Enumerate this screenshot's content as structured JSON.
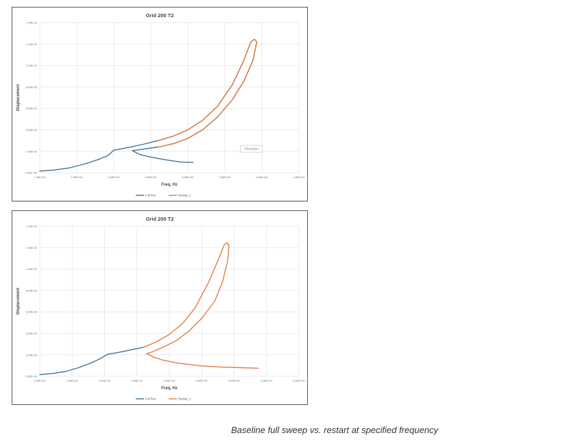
{
  "caption": "Baseline full sweep vs. restart at specified frequency",
  "chart_data": [
    {
      "type": "line",
      "title": "Grid 200 T2",
      "xlabel": "Freq, Hz",
      "ylabel": "Displacement",
      "xlim": [
        10,
        45
      ],
      "ylim": [
        0,
        0.014
      ],
      "x_ticks": [
        10,
        15,
        20,
        25,
        30,
        35,
        40,
        45
      ],
      "x_tick_labels": [
        "1.00E+01",
        "1.50E+01",
        "2.00E+01",
        "2.50E+01",
        "3.00E+01",
        "3.50E+01",
        "4.00E+01",
        "4.50E+01"
      ],
      "y_ticks": [
        0,
        0.002,
        0.004,
        0.006,
        0.008,
        0.01,
        0.012,
        0.014
      ],
      "y_tick_labels": [
        "0.00E+00",
        "2.00E-03",
        "4.00E-03",
        "6.00E-03",
        "8.00E-03",
        "1.00E-02",
        "1.20E-02",
        "1.40E-02"
      ],
      "grid": true,
      "legend": "bottom",
      "annotation": "Plot Area",
      "series": [
        {
          "name": "Full Run",
          "color": "#41729a",
          "points": [
            [
              10,
              0.00015
            ],
            [
              12,
              0.00025
            ],
            [
              14,
              0.00045
            ],
            [
              16,
              0.0008
            ],
            [
              18,
              0.00125
            ],
            [
              19.2,
              0.0016
            ],
            [
              20,
              0.0021
            ],
            [
              22,
              0.00235
            ],
            [
              24,
              0.00265
            ],
            [
              26,
              0.003
            ],
            [
              28,
              0.0034
            ],
            [
              30,
              0.004
            ],
            [
              32,
              0.0049
            ],
            [
              34,
              0.0062
            ],
            [
              36,
              0.0082
            ],
            [
              37.5,
              0.0104
            ],
            [
              38.5,
              0.0122
            ],
            [
              39,
              0.01245
            ],
            [
              39.3,
              0.0122
            ],
            [
              38.8,
              0.0105
            ],
            [
              37.6,
              0.0086
            ],
            [
              36,
              0.0068
            ],
            [
              34,
              0.0052
            ],
            [
              32,
              0.004
            ],
            [
              30,
              0.0032
            ],
            [
              28,
              0.0027
            ],
            [
              26,
              0.0024
            ],
            [
              24,
              0.0022
            ],
            [
              22.5,
              0.00205
            ],
            [
              23.5,
              0.0017
            ],
            [
              25,
              0.00145
            ],
            [
              27,
              0.0012
            ],
            [
              29,
              0.001
            ],
            [
              30.7,
              0.00095
            ]
          ]
        },
        {
          "name": "Restart_1",
          "color": "#e07b44",
          "points": [
            [
              26,
              0.003
            ],
            [
              28,
              0.0034
            ],
            [
              30,
              0.004
            ],
            [
              32,
              0.0049
            ],
            [
              34,
              0.0062
            ],
            [
              36,
              0.0082
            ],
            [
              37.5,
              0.0104
            ],
            [
              38.5,
              0.0122
            ],
            [
              39,
              0.01245
            ],
            [
              39.3,
              0.0122
            ],
            [
              38.8,
              0.0105
            ],
            [
              37.6,
              0.0086
            ],
            [
              36,
              0.0068
            ],
            [
              34,
              0.0052
            ],
            [
              32,
              0.004
            ],
            [
              30,
              0.0032
            ],
            [
              28,
              0.0027
            ],
            [
              26,
              0.0024
            ]
          ]
        }
      ]
    },
    {
      "type": "line",
      "title": "Grid 200 T2",
      "xlabel": "Freq, Hz",
      "ylabel": "Displacement",
      "xlim": [
        10,
        50
      ],
      "ylim": [
        0,
        0.014
      ],
      "x_ticks": [
        10,
        15,
        20,
        25,
        30,
        35,
        40,
        45,
        50
      ],
      "x_tick_labels": [
        "1.00E+01",
        "1.50E+01",
        "2.00E+01",
        "2.50E+01",
        "3.00E+01",
        "3.50E+01",
        "4.00E+01",
        "4.50E+01",
        "5.00E+01"
      ],
      "y_ticks": [
        0,
        0.002,
        0.004,
        0.006,
        0.008,
        0.01,
        0.012,
        0.014
      ],
      "y_tick_labels": [
        "0.00E+00",
        "2.00E-03",
        "4.00E-03",
        "6.00E-03",
        "8.00E-03",
        "1.00E-02",
        "1.20E-02",
        "1.40E-02"
      ],
      "grid": true,
      "legend": "bottom",
      "series": [
        {
          "name": "Full Run",
          "color": "#41729a",
          "points": [
            [
              10,
              0.00015
            ],
            [
              12,
              0.00025
            ],
            [
              14,
              0.00045
            ],
            [
              16,
              0.0008
            ],
            [
              18,
              0.00125
            ],
            [
              19.2,
              0.0016
            ],
            [
              20.5,
              0.00205
            ],
            [
              22,
              0.0022
            ],
            [
              24,
              0.00245
            ],
            [
              26,
              0.0027
            ]
          ]
        },
        {
          "name": "Restart_2",
          "color": "#e07b44",
          "points": [
            [
              26,
              0.0027
            ],
            [
              28,
              0.0032
            ],
            [
              30,
              0.0039
            ],
            [
              32,
              0.0049
            ],
            [
              34,
              0.0064
            ],
            [
              36,
              0.0087
            ],
            [
              37.5,
              0.0108
            ],
            [
              38.5,
              0.0123
            ],
            [
              38.9,
              0.01245
            ],
            [
              39.2,
              0.0122
            ],
            [
              39,
              0.0108
            ],
            [
              38.2,
              0.0088
            ],
            [
              37,
              0.007
            ],
            [
              35,
              0.0054
            ],
            [
              33,
              0.0042
            ],
            [
              31,
              0.0033
            ],
            [
              29,
              0.0027
            ],
            [
              27.5,
              0.0023
            ],
            [
              26.5,
              0.0021
            ],
            [
              27.5,
              0.0018
            ],
            [
              29,
              0.0015
            ],
            [
              31,
              0.00125
            ],
            [
              33,
              0.0011
            ],
            [
              35,
              0.00095
            ],
            [
              38,
              0.00085
            ],
            [
              41,
              0.0008
            ],
            [
              43.7,
              0.00075
            ]
          ]
        }
      ]
    }
  ]
}
